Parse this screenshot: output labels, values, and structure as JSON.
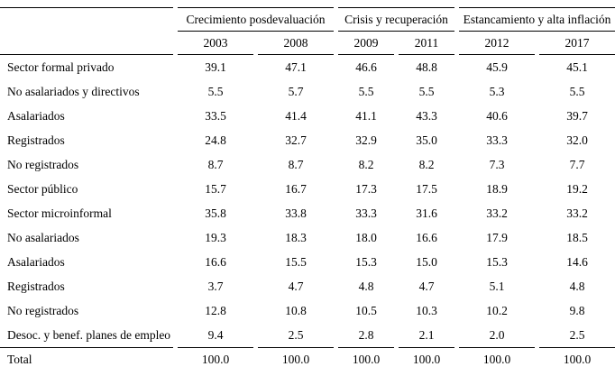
{
  "table": {
    "groups": [
      {
        "label": "Crecimiento posdevaluación",
        "years": [
          "2003",
          "2008"
        ]
      },
      {
        "label": "Crisis y recuperación",
        "years": [
          "2009",
          "2011"
        ]
      },
      {
        "label": "Estancamiento y alta inflación",
        "years": [
          "2012",
          "2017"
        ]
      }
    ],
    "rows": [
      {
        "label": "Sector formal privado",
        "values": [
          "39.1",
          "47.1",
          "46.6",
          "48.8",
          "45.9",
          "45.1"
        ]
      },
      {
        "label": "No asalariados y directivos",
        "values": [
          "5.5",
          "5.7",
          "5.5",
          "5.5",
          "5.3",
          "5.5"
        ]
      },
      {
        "label": "Asalariados",
        "values": [
          "33.5",
          "41.4",
          "41.1",
          "43.3",
          "40.6",
          "39.7"
        ]
      },
      {
        "label": "Registrados",
        "values": [
          "24.8",
          "32.7",
          "32.9",
          "35.0",
          "33.3",
          "32.0"
        ]
      },
      {
        "label": "No registrados",
        "values": [
          "8.7",
          "8.7",
          "8.2",
          "8.2",
          "7.3",
          "7.7"
        ]
      },
      {
        "label": "Sector público",
        "values": [
          "15.7",
          "16.7",
          "17.3",
          "17.5",
          "18.9",
          "19.2"
        ]
      },
      {
        "label": "Sector microinformal",
        "values": [
          "35.8",
          "33.8",
          "33.3",
          "31.6",
          "33.2",
          "33.2"
        ]
      },
      {
        "label": "No asalariados",
        "values": [
          "19.3",
          "18.3",
          "18.0",
          "16.6",
          "17.9",
          "18.5"
        ]
      },
      {
        "label": "Asalariados",
        "values": [
          "16.6",
          "15.5",
          "15.3",
          "15.0",
          "15.3",
          "14.6"
        ]
      },
      {
        "label": "Registrados",
        "values": [
          "3.7",
          "4.7",
          "4.8",
          "4.7",
          "5.1",
          "4.8"
        ]
      },
      {
        "label": "No registrados",
        "values": [
          "12.8",
          "10.8",
          "10.5",
          "10.3",
          "10.2",
          "9.8"
        ]
      },
      {
        "label": "Desoc. y benef. planes de empleo",
        "values": [
          "9.4",
          "2.5",
          "2.8",
          "2.1",
          "2.0",
          "2.5"
        ]
      }
    ],
    "total_row": {
      "label": "Total",
      "values": [
        "100.0",
        "100.0",
        "100.0",
        "100.0",
        "100.0",
        "100.0"
      ]
    }
  }
}
